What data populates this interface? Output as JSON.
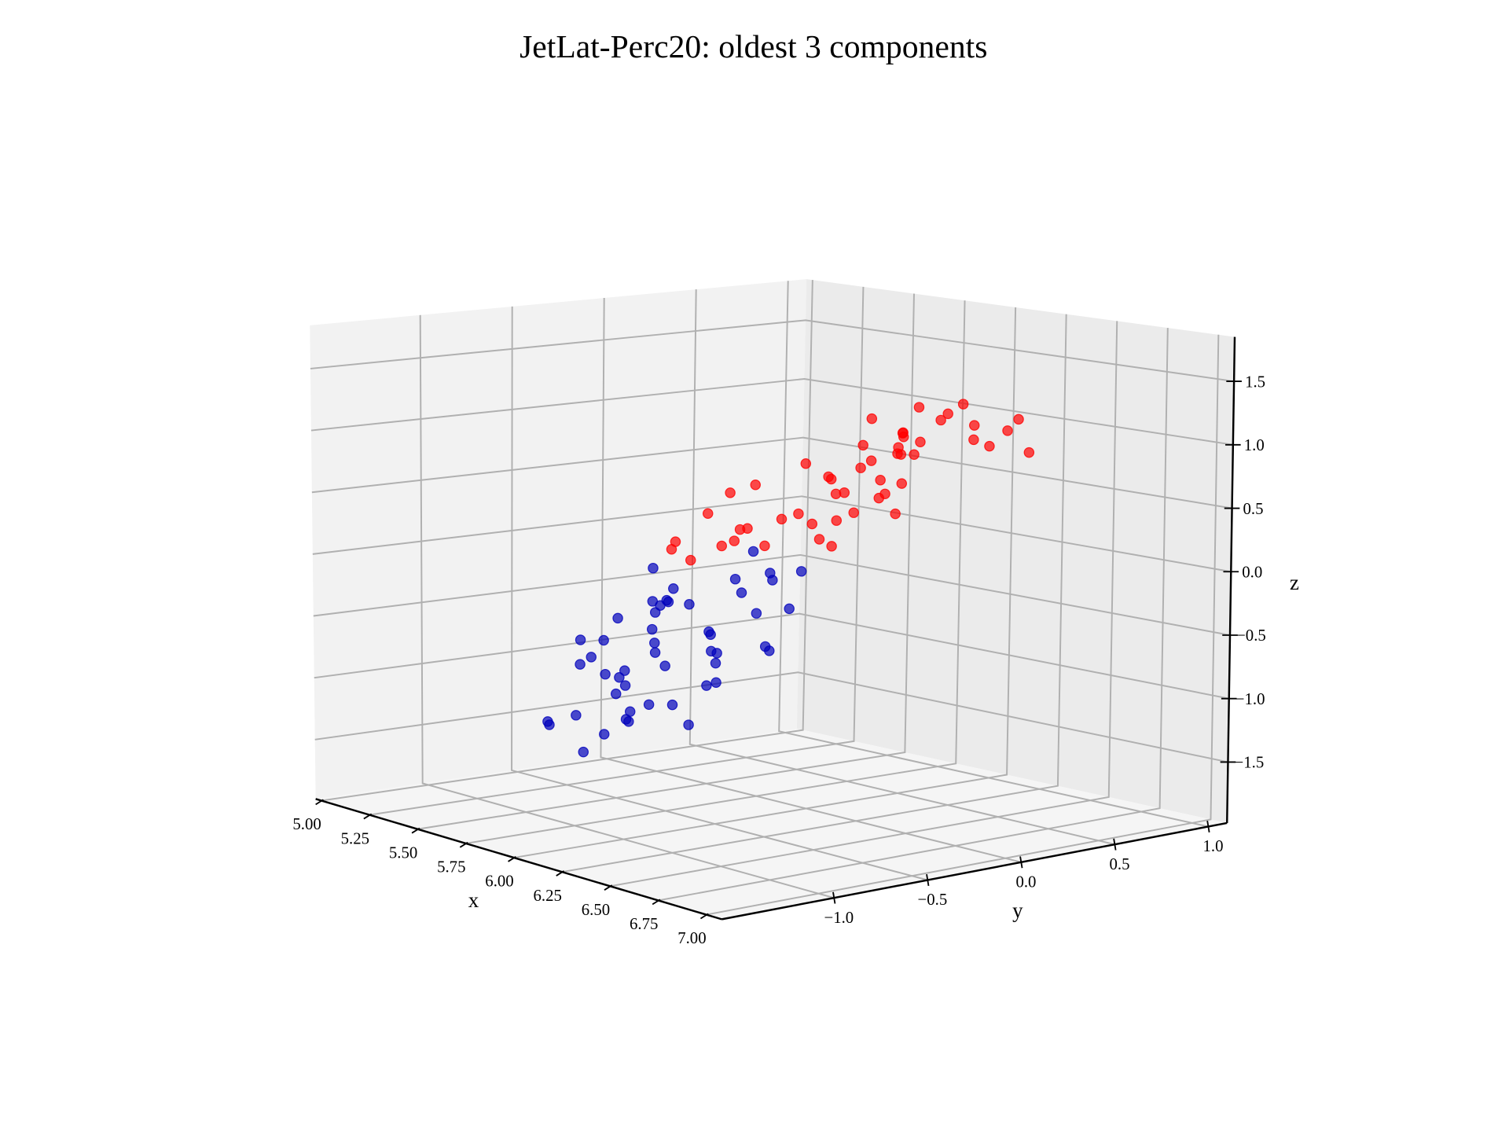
{
  "chart_data": {
    "type": "scatter3d",
    "title": "JetLat-Perc20: oldest 3 components",
    "xlabel": "x",
    "ylabel": "y",
    "zlabel": "z",
    "xlim": [
      4.97,
      7.08
    ],
    "ylim": [
      -1.6,
      1.1
    ],
    "zlim": [
      -1.98,
      1.85
    ],
    "xticks": [
      {
        "value": 5,
        "label": "5.00"
      },
      {
        "value": 5.25,
        "label": "5.25"
      },
      {
        "value": 5.5,
        "label": "5.50"
      },
      {
        "value": 5.75,
        "label": "5.75"
      },
      {
        "value": 6,
        "label": "6.00"
      },
      {
        "value": 6.25,
        "label": "6.25"
      },
      {
        "value": 6.5,
        "label": "6.50"
      },
      {
        "value": 6.75,
        "label": "6.75"
      },
      {
        "value": 7,
        "label": "7.00"
      }
    ],
    "yticks": [
      {
        "value": -1,
        "label": "−1.0"
      },
      {
        "value": -0.5,
        "label": "−0.5"
      },
      {
        "value": 0,
        "label": "0.0"
      },
      {
        "value": 0.5,
        "label": "0.5"
      },
      {
        "value": 1,
        "label": "1.0"
      }
    ],
    "zticks": [
      {
        "value": -1.5,
        "label": "−1.5"
      },
      {
        "value": -1,
        "label": "−1.0"
      },
      {
        "value": -0.5,
        "label": "−0.5"
      },
      {
        "value": 0,
        "label": "0.0"
      },
      {
        "value": 0.5,
        "label": "0.5"
      },
      {
        "value": 1,
        "label": "1.0"
      },
      {
        "value": 1.5,
        "label": "1.5"
      }
    ],
    "grid": true,
    "series": [
      {
        "color": "#0000bb",
        "x": [
          6.21,
          5.98,
          6.45,
          6.1,
          6.33,
          5.87,
          6.52,
          6.05,
          6.28,
          6.4,
          5.92,
          6.15,
          6.6,
          6.02,
          6.37,
          6.18,
          5.8,
          6.48,
          6.25,
          6.08,
          6.55,
          5.95,
          6.3,
          6.12,
          6.42,
          6.0,
          6.22,
          6.65,
          5.9,
          6.35,
          6.17,
          6.47,
          6.04,
          6.27,
          5.85,
          6.58,
          6.13,
          6.38,
          5.97,
          6.24,
          6.5,
          6.07,
          6.32,
          6.19,
          5.93,
          6.44,
          6.11,
          6.29,
          6.62,
          6.03
        ],
        "y": [
          -1.05,
          -0.82,
          -1.21,
          -0.95,
          -1.32,
          -0.7,
          -1.1,
          -0.88,
          -1.4,
          -0.62,
          -1.15,
          -0.99,
          -1.28,
          -0.75,
          -0.92,
          -1.18,
          -1.02,
          -0.55,
          -1.25,
          -0.85,
          -1.08,
          -1.35,
          -0.68,
          -1.12,
          -0.97,
          -0.8,
          -1.45,
          -0.9,
          -1.0,
          -0.58,
          -1.22,
          -0.78,
          -1.3,
          -1.06,
          -0.87,
          -0.72,
          -1.16,
          -0.94,
          -1.38,
          -0.65,
          -1.03,
          -0.83,
          -1.2,
          -0.5,
          -1.1,
          -0.96,
          -0.76,
          -1.27,
          -0.89,
          -1.13
        ],
        "z": [
          -0.42,
          -0.15,
          -0.7,
          -0.3,
          -0.85,
          0.05,
          -0.55,
          -0.2,
          -0.95,
          0.12,
          -0.6,
          -0.38,
          -0.78,
          -0.05,
          -0.25,
          -0.66,
          -0.48,
          0.2,
          -0.88,
          -0.1,
          -0.52,
          -1.02,
          0.0,
          -0.58,
          -0.35,
          -0.18,
          -1.1,
          -0.28,
          -0.45,
          0.15,
          -0.72,
          -0.08,
          -0.92,
          -0.5,
          -0.32,
          -0.02,
          -0.62,
          -0.22,
          -0.98,
          0.08,
          -0.4,
          -0.12,
          -0.75,
          0.25,
          -0.55,
          -0.36,
          -0.14,
          -0.8,
          -0.26,
          -0.64
        ]
      },
      {
        "color": "#ff0000",
        "x": [
          6.02,
          5.88,
          6.2,
          5.75,
          6.1,
          5.95,
          6.3,
          5.82,
          6.15,
          6.05,
          5.7,
          6.25,
          5.92,
          6.12,
          5.85,
          6.35,
          5.98,
          6.08,
          5.78,
          6.22,
          6.0,
          5.9,
          6.18,
          6.4,
          5.8,
          6.06,
          5.96,
          6.28,
          5.86,
          6.14,
          6.03,
          5.74,
          6.24,
          5.94,
          6.11,
          5.84,
          6.32,
          6.01,
          5.91,
          6.16,
          5.79,
          6.26,
          6.07,
          5.97,
          6.19,
          5.87,
          6.09,
          6.36,
          5.99,
          6.13
        ],
        "y": [
          0.1,
          -0.2,
          0.35,
          -0.45,
          0.6,
          0.0,
          0.8,
          -0.35,
          0.25,
          0.45,
          -0.1,
          0.7,
          -0.55,
          0.15,
          0.5,
          -0.25,
          0.85,
          0.3,
          -0.05,
          0.65,
          -0.4,
          0.4,
          0.05,
          0.75,
          0.2,
          -0.3,
          0.55,
          -0.15,
          0.9,
          0.35,
          -0.5,
          0.62,
          0.12,
          -0.08,
          0.48,
          0.28,
          0.72,
          -0.38,
          0.58,
          0.02,
          0.82,
          -0.22,
          0.42,
          0.18,
          0.68,
          -0.6,
          0.38,
          0.08,
          0.52,
          -0.12
        ],
        "z": [
          0.65,
          0.27,
          0.85,
          0.17,
          1.05,
          0.37,
          1.07,
          0.4,
          0.54,
          0.96,
          0.48,
          0.86,
          0.1,
          0.76,
          0.67,
          0.29,
          1.1,
          0.62,
          0.56,
          1.03,
          0.25,
          0.83,
          0.44,
          0.84,
          0.69,
          0.21,
          0.92,
          0.45,
          0.98,
          0.6,
          0.24,
          0.96,
          0.56,
          0.34,
          0.9,
          0.58,
          1.0,
          0.34,
          0.78,
          0.6,
          1.03,
          0.31,
          0.8,
          0.5,
          0.9,
          0.18,
          0.82,
          0.48,
          0.9,
          0.37
        ]
      }
    ]
  }
}
